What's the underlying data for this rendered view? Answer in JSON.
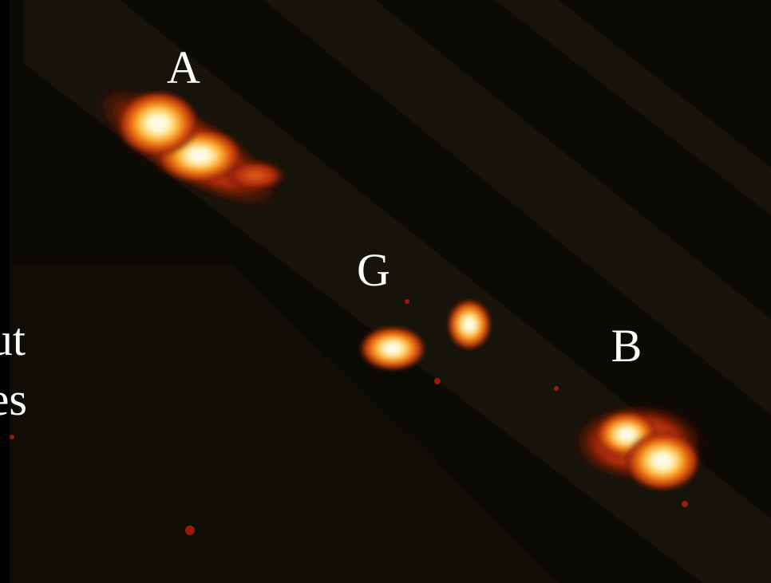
{
  "labels": [
    "A",
    "G",
    "B"
  ],
  "cut_text": [
    "ut",
    "es"
  ]
}
